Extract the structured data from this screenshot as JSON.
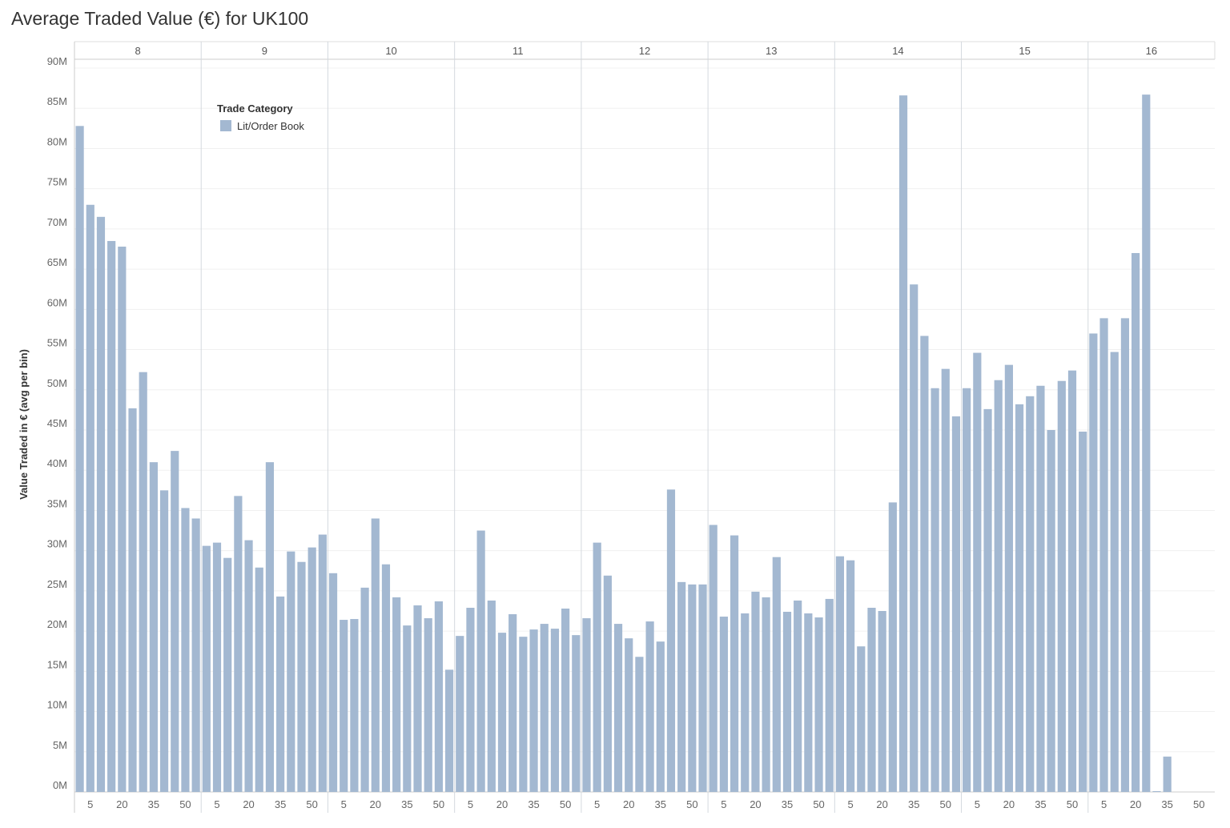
{
  "chart_data": {
    "type": "bar",
    "title": "Average Traded Value (€) for UK100",
    "ylabel": "Value Traded in € (avg per bin)",
    "xlabel": "",
    "ylim": [
      0,
      90
    ],
    "y_ticks": [
      0,
      5,
      10,
      15,
      20,
      25,
      30,
      35,
      40,
      45,
      50,
      55,
      60,
      65,
      70,
      75,
      80,
      85,
      90
    ],
    "y_tick_suffix": "M",
    "hours": [
      "8",
      "9",
      "10",
      "11",
      "12",
      "13",
      "14",
      "15",
      "16"
    ],
    "minute_bins": [
      0,
      5,
      10,
      15,
      20,
      25,
      30,
      35,
      40,
      45,
      50,
      55
    ],
    "x_tick_labels": [
      "5",
      "20",
      "35",
      "50"
    ],
    "legend": {
      "title": "Trade Category",
      "placement": "top-left",
      "entries": [
        {
          "name": "Lit/Order Book",
          "color": "#a3b8d1"
        }
      ]
    },
    "grid": true,
    "series": [
      {
        "name": "Lit/Order Book",
        "color": "#a3b8d1",
        "values_by_hour": [
          [
            82.8,
            73.0,
            71.5,
            68.5,
            67.8,
            47.7,
            52.2,
            41.0,
            37.5,
            42.4,
            35.3,
            34.0
          ],
          [
            30.6,
            31.0,
            29.1,
            36.8,
            31.3,
            27.9,
            41.0,
            24.3,
            29.9,
            28.6,
            30.4,
            32.0
          ],
          [
            27.2,
            21.4,
            21.5,
            25.4,
            34.0,
            28.3,
            24.2,
            20.7,
            23.2,
            21.6,
            23.7,
            15.2
          ],
          [
            19.4,
            22.9,
            32.5,
            23.8,
            19.8,
            22.1,
            19.3,
            20.2,
            20.9,
            20.3,
            22.8,
            19.5
          ],
          [
            21.6,
            31.0,
            26.9,
            20.9,
            19.1,
            16.8,
            21.2,
            18.7,
            37.6,
            26.1,
            25.8,
            25.8
          ],
          [
            33.2,
            21.8,
            31.9,
            22.2,
            24.9,
            24.2,
            29.2,
            22.4,
            23.8,
            22.2,
            21.7,
            24.0
          ],
          [
            29.3,
            28.8,
            18.1,
            22.9,
            22.5,
            36.0,
            86.6,
            63.1,
            56.7,
            50.2,
            52.6,
            46.7
          ],
          [
            50.2,
            54.6,
            47.6,
            51.2,
            53.1,
            48.2,
            49.2,
            50.5,
            45.0,
            51.1,
            52.4,
            44.8
          ],
          [
            57.0,
            58.9,
            54.7,
            58.9,
            67.0,
            86.7,
            0.1,
            4.4,
            null,
            null,
            null,
            null
          ]
        ]
      }
    ]
  }
}
